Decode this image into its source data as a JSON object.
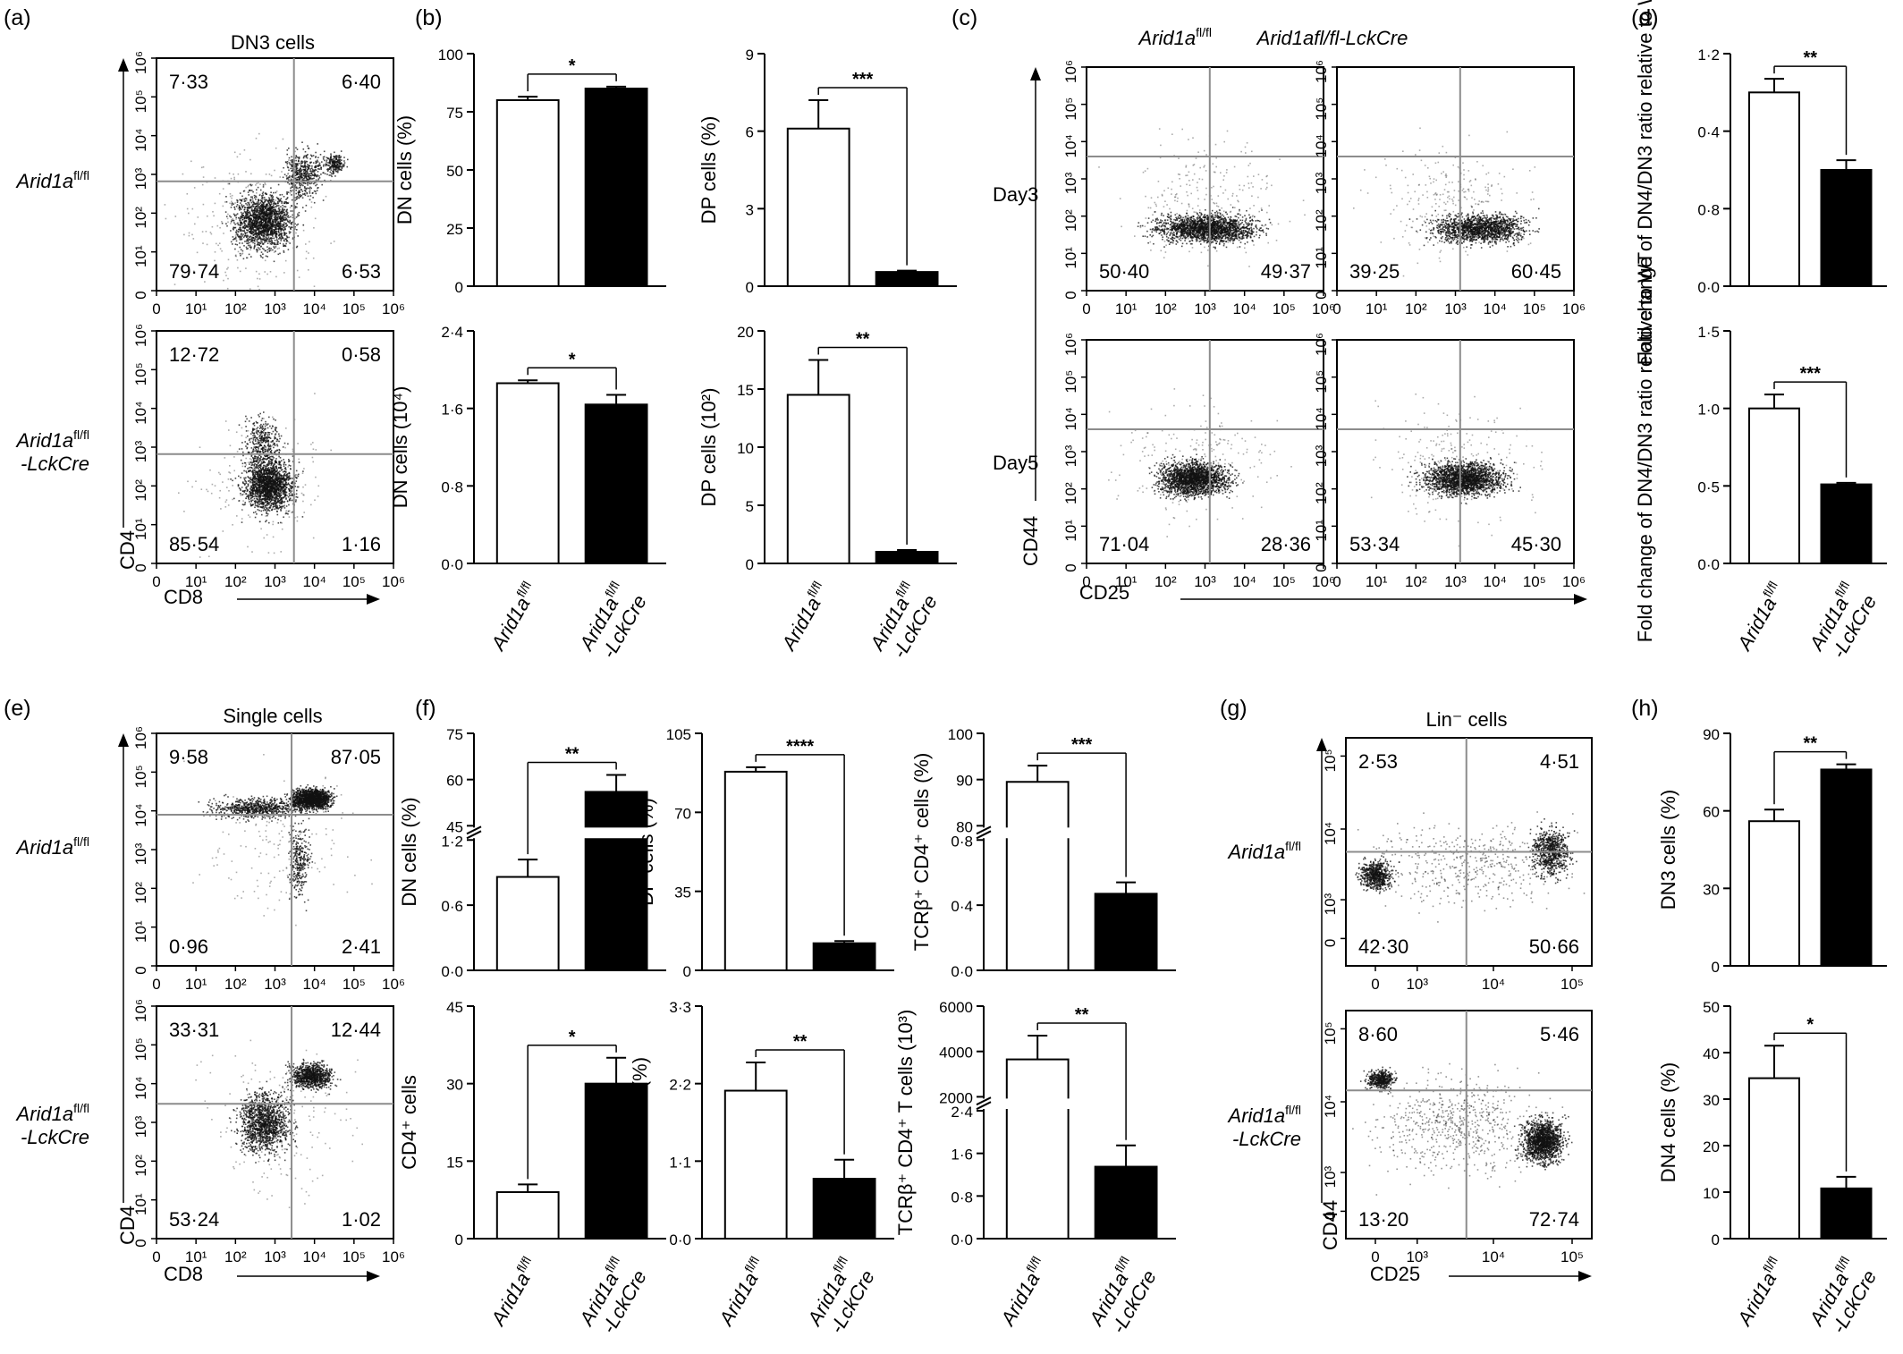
{
  "panel_letters": [
    "(a)",
    "(b)",
    "(c)",
    "(d)",
    "(e)",
    "(f)",
    "(g)",
    "(h)"
  ],
  "genotypes": {
    "wt": "Arid1a",
    "wt_sup": "fl/fl",
    "ko_line1": "Arid1a",
    "ko_sup": "fl/fl",
    "ko_line2": "-LckCre",
    "ko_inline": "Arid1afl/fl-LckCre"
  },
  "colors": {
    "wt_fill": "#ffffff",
    "ko_fill": "#000000",
    "gate": "#8c8c8c"
  },
  "flow_log6_ticks": [
    "0",
    "10¹",
    "10²",
    "10³",
    "10⁴",
    "10⁵",
    "10⁶"
  ],
  "flow_biex_ticks": [
    "0",
    "10³",
    "10⁴",
    "10⁵"
  ],
  "chart_data": [
    {
      "id": "a",
      "type": "scatter",
      "title": "DN3 cells",
      "xlabel": "CD8",
      "ylabel": "CD4",
      "scale": "log",
      "samples": [
        {
          "row_label": "Arid1afl/fl",
          "quadrants": {
            "top_left": "7·33",
            "top_right": "6·40",
            "bottom_left": "79·74",
            "bottom_right": "6·53"
          }
        },
        {
          "row_label": "Arid1afl/fl-LckCre",
          "quadrants": {
            "top_left": "12·72",
            "top_right": "0·58",
            "bottom_left": "85·54",
            "bottom_right": "1·16"
          }
        }
      ]
    },
    {
      "id": "b",
      "type": "bar",
      "categories": [
        "Arid1afl/fl",
        "Arid1afl/fl-LckCre"
      ],
      "subplots": [
        {
          "ylabel": "DN cells (%)",
          "yticks": [
            "0",
            "25",
            "50",
            "75",
            "100"
          ],
          "ylim": [
            0,
            100
          ],
          "values": [
            80,
            85
          ],
          "errors": [
            1.5,
            0.8
          ],
          "significance": "*"
        },
        {
          "ylabel": "DP cells (%)",
          "yticks": [
            "0",
            "3",
            "6",
            "9"
          ],
          "ylim": [
            0,
            9
          ],
          "values": [
            6.1,
            0.55
          ],
          "errors": [
            1.1,
            0.05
          ],
          "significance": "***"
        },
        {
          "ylabel": "DN cells (10⁴)",
          "yticks": [
            "0·0",
            "0·8",
            "1·6",
            "2·4"
          ],
          "ylim": [
            0,
            2.4
          ],
          "values": [
            1.86,
            1.64
          ],
          "errors": [
            0.03,
            0.1
          ],
          "significance": "*"
        },
        {
          "ylabel": "DP cells (10²)",
          "yticks": [
            "0",
            "5",
            "10",
            "15",
            "20"
          ],
          "ylim": [
            0,
            20
          ],
          "values": [
            14.5,
            1.0
          ],
          "errors": [
            3.0,
            0.15
          ],
          "significance": "**"
        }
      ]
    },
    {
      "id": "c",
      "type": "scatter",
      "xlabel": "CD25",
      "ylabel": "CD44",
      "column_titles": [
        "Arid1afl/fl",
        "Arid1afl/fl-LckCre"
      ],
      "row_labels": [
        "Day3",
        "Day5"
      ],
      "plots": [
        {
          "row": 0,
          "col": 0,
          "bottom_left": "50·40",
          "bottom_right": "49·37"
        },
        {
          "row": 0,
          "col": 1,
          "bottom_left": "39·25",
          "bottom_right": "60·45"
        },
        {
          "row": 1,
          "col": 0,
          "bottom_left": "71·04",
          "bottom_right": "28·36"
        },
        {
          "row": 1,
          "col": 1,
          "bottom_left": "53·34",
          "bottom_right": "45·30"
        }
      ]
    },
    {
      "id": "d",
      "type": "bar",
      "categories": [
        "Arid1afl/fl",
        "Arid1afl/fl-LckCre"
      ],
      "subplots": [
        {
          "ylabel": "Fold change of DN4/DN3 ratio relative to WT",
          "yticks": [
            "0·0",
            "0·8",
            "0·4",
            "1·2"
          ],
          "ylim": [
            0,
            1.2
          ],
          "values": [
            1.0,
            0.6
          ],
          "errors": [
            0.07,
            0.05
          ],
          "significance": "**"
        },
        {
          "ylabel": "Fold change of DN4/DN3 ratio relative to WT",
          "yticks": [
            "0·0",
            "0·5",
            "1·0",
            "1·5"
          ],
          "ylim": [
            0,
            1.5
          ],
          "values": [
            1.0,
            0.51
          ],
          "errors": [
            0.09,
            0.01
          ],
          "significance": "***"
        }
      ]
    },
    {
      "id": "e",
      "type": "scatter",
      "title": "Single cells",
      "xlabel": "CD8",
      "ylabel": "CD4",
      "scale": "log",
      "samples": [
        {
          "row_label": "Arid1afl/fl",
          "quadrants": {
            "top_left": "9·58",
            "top_right": "87·05",
            "bottom_left": "0·96",
            "bottom_right": "2·41"
          }
        },
        {
          "row_label": "Arid1afl/fl-LckCre",
          "quadrants": {
            "top_left": "33·31",
            "top_right": "12·44",
            "bottom_left": "53·24",
            "bottom_right": "1·02"
          }
        }
      ]
    },
    {
      "id": "f",
      "type": "bar",
      "categories": [
        "Arid1afl/fl",
        "Arid1afl/fl-LckCre"
      ],
      "subplots": [
        {
          "ylabel": "DN cells (%)",
          "axis_break": true,
          "yticks_lower": [
            "0·0",
            "0·6",
            "1·2"
          ],
          "yticks_upper": [
            "45",
            "60",
            "75"
          ],
          "values": [
            0.86,
            56
          ],
          "errors": [
            0.16,
            5.5
          ],
          "significance": "**"
        },
        {
          "ylabel": "DP cells (%)",
          "yticks": [
            "0",
            "35",
            "70",
            "105"
          ],
          "ylim": [
            0,
            105
          ],
          "values": [
            88,
            12
          ],
          "errors": [
            2,
            1
          ],
          "significance": "****"
        },
        {
          "ylabel": "TCRβ⁺ CD4⁺ cells (%)",
          "axis_break": true,
          "yticks_lower": [
            "0·0",
            "0·4",
            "0·8"
          ],
          "yticks_upper": [
            "80",
            "90",
            "100"
          ],
          "values": [
            89.5,
            0.47
          ],
          "errors": [
            3.5,
            0.07
          ],
          "significance": "***"
        },
        {
          "ylabel": "CD4⁺ cells",
          "yticks": [
            "0",
            "15",
            "30",
            "45"
          ],
          "ylim": [
            0,
            45
          ],
          "values": [
            9,
            30
          ],
          "errors": [
            1.5,
            5
          ],
          "significance": "*"
        },
        {
          "ylabel": "CD8⁺ cells (%)",
          "yticks": [
            "0·0",
            "1·1",
            "2·2",
            "3·3"
          ],
          "ylim": [
            0,
            3.3
          ],
          "values": [
            2.1,
            0.85
          ],
          "errors": [
            0.4,
            0.27
          ],
          "significance": "**"
        },
        {
          "ylabel": "TCRβ⁺ CD4⁺ T cells (10³)",
          "axis_break": true,
          "yticks_lower": [
            "0·0",
            "0·8",
            "1·6",
            "2·4"
          ],
          "yticks_upper": [
            "2000",
            "4000",
            "6000"
          ],
          "values": [
            3650,
            1.35
          ],
          "errors": [
            1050,
            0.4
          ],
          "significance": "**"
        }
      ]
    },
    {
      "id": "g",
      "type": "scatter",
      "title": "Lin⁻ cells",
      "xlabel": "CD25",
      "ylabel": "CD44",
      "scale": "biexponential",
      "samples": [
        {
          "row_label": "Arid1afl/fl",
          "quadrants": {
            "top_left": "2·53",
            "top_right": "4·51",
            "bottom_left": "42·30",
            "bottom_right": "50·66"
          }
        },
        {
          "row_label": "Arid1afl/fl-LckCre",
          "quadrants": {
            "top_left": "8·60",
            "top_right": "5·46",
            "bottom_left": "13·20",
            "bottom_right": "72·74"
          }
        }
      ]
    },
    {
      "id": "h",
      "type": "bar",
      "categories": [
        "Arid1afl/fl",
        "Arid1afl/fl-LckCre"
      ],
      "subplots": [
        {
          "ylabel": "DN3 cells (%)",
          "yticks": [
            "0",
            "30",
            "60",
            "90"
          ],
          "ylim": [
            0,
            90
          ],
          "values": [
            56,
            76
          ],
          "errors": [
            4.5,
            2
          ],
          "significance": "**"
        },
        {
          "ylabel": "DN4 cells (%)",
          "yticks": [
            "0",
            "10",
            "20",
            "30",
            "40",
            "50"
          ],
          "ylim": [
            0,
            50
          ],
          "values": [
            34.5,
            10.8
          ],
          "errors": [
            7,
            2.5
          ],
          "significance": "*"
        }
      ]
    }
  ]
}
